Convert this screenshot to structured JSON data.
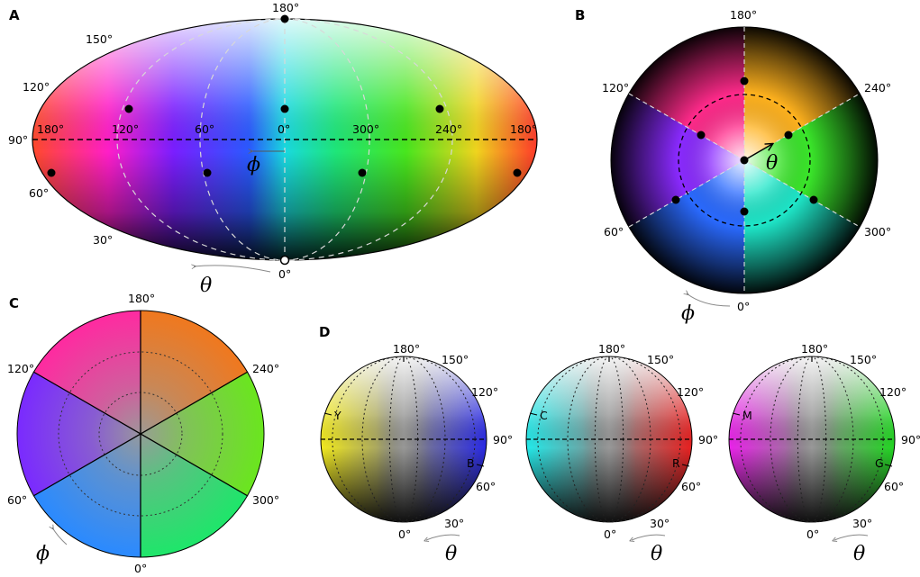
{
  "panels": {
    "A": {
      "letter": "A",
      "theta_ticks": [
        "180°",
        "150°",
        "120°",
        "90°",
        "60°",
        "30°",
        "0°"
      ],
      "phi_ticks": [
        "180°",
        "120°",
        "60°",
        "0°",
        "300°",
        "240°",
        "180°"
      ],
      "phi_symbol": "ϕ",
      "theta_symbol": "θ"
    },
    "B": {
      "letter": "B",
      "ticks": [
        "180°",
        "240°",
        "300°",
        "0°",
        "60°",
        "120°"
      ],
      "theta_symbol": "θ",
      "phi_symbol": "ϕ"
    },
    "C": {
      "letter": "C",
      "ticks": [
        "180°",
        "240°",
        "300°",
        "0°",
        "60°",
        "120°"
      ],
      "phi_symbol": "ϕ"
    },
    "D": {
      "letter": "D",
      "theta_ticks": [
        "180°",
        "150°",
        "120°",
        "90°",
        "60°",
        "30°",
        "0°"
      ],
      "theta_symbol": "θ",
      "spheres": [
        {
          "left_label": "Y",
          "right_label": "B",
          "left_color": "#f2ea1e",
          "right_color": "#2a2ae6"
        },
        {
          "left_label": "C",
          "right_label": "R",
          "left_color": "#22eaea",
          "right_color": "#e82020"
        },
        {
          "left_label": "M",
          "right_label": "G",
          "left_color": "#ea22ea",
          "right_color": "#22d622"
        }
      ]
    }
  },
  "colors": {
    "red": "#ff2a2a",
    "yellow": "#f0e81e",
    "green": "#22e22a",
    "cyan": "#1fe6e6",
    "blue": "#2630ff",
    "magenta": "#e020e0"
  }
}
